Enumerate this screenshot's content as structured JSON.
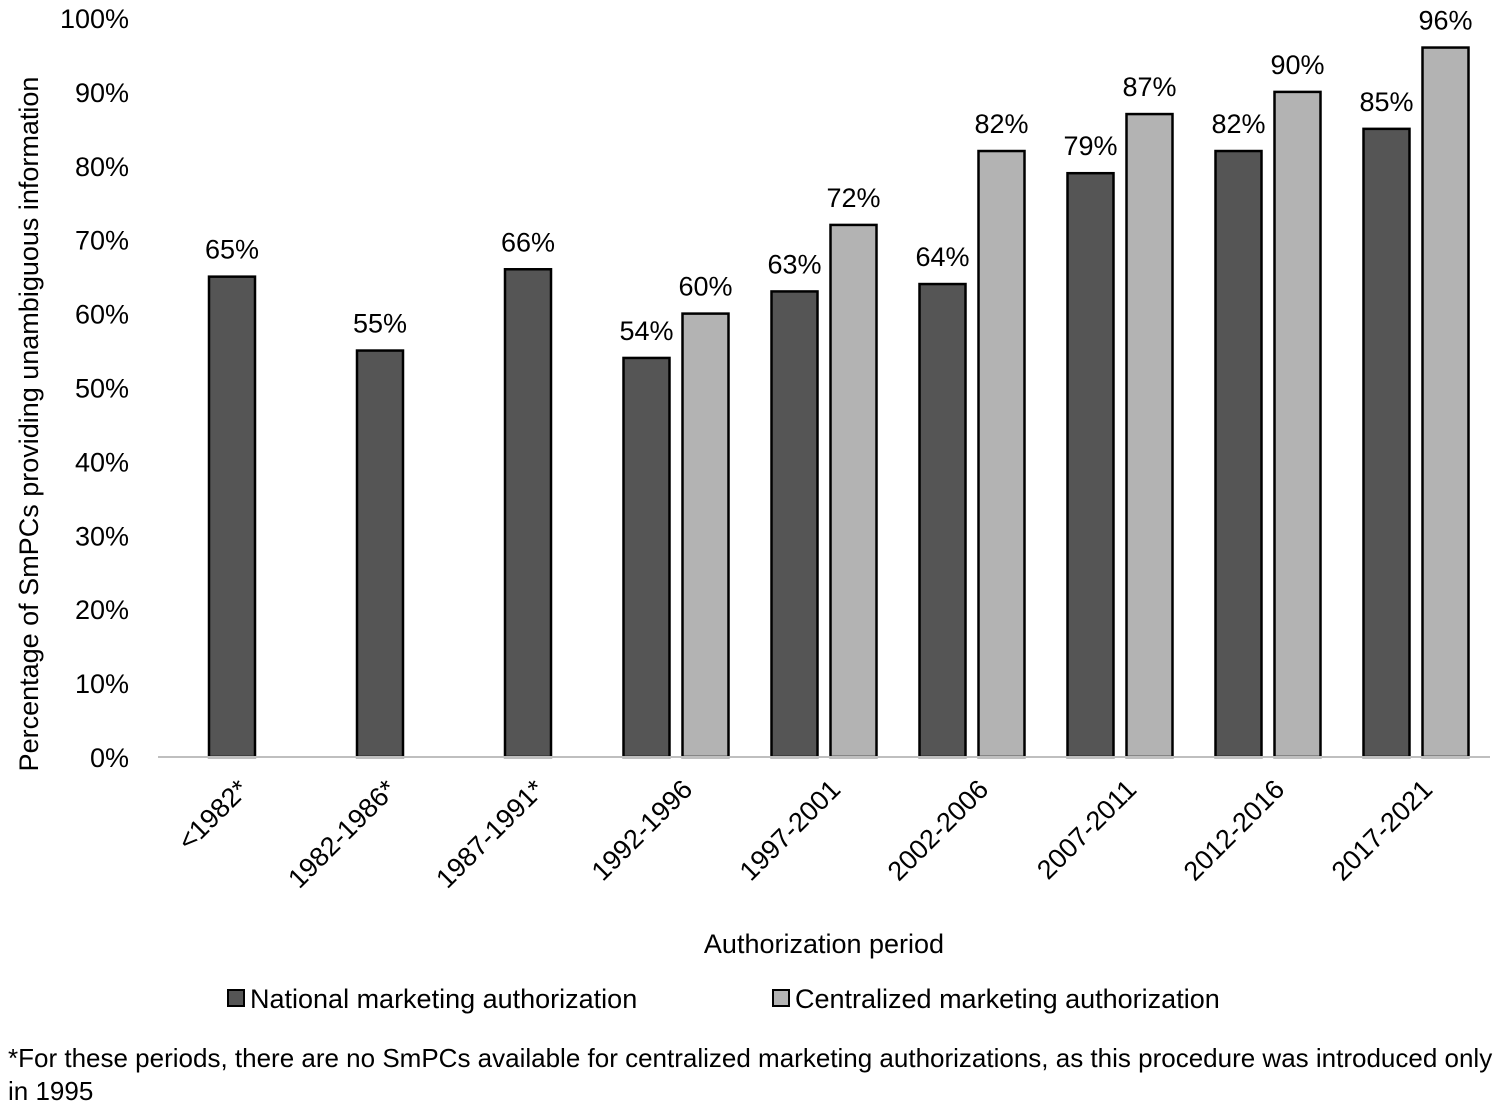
{
  "chart_data": {
    "type": "bar",
    "xlabel": "Authorization period",
    "ylabel": "Percentage of SmPCs providing unambiguous information",
    "ylim": [
      0,
      100
    ],
    "y_ticks": [
      "0%",
      "10%",
      "20%",
      "30%",
      "40%",
      "50%",
      "60%",
      "70%",
      "80%",
      "90%",
      "100%"
    ],
    "categories": [
      "<1982*",
      "1982-1986*",
      "1987-1991*",
      "1992-1996",
      "1997-2001",
      "2002-2006",
      "2007-2011",
      "2012-2016",
      "2017-2021"
    ],
    "series": [
      {
        "name": "National marketing authorization",
        "color": "#555555",
        "values": [
          65,
          55,
          66,
          54,
          63,
          64,
          79,
          82,
          85
        ],
        "labels": [
          "65%",
          "55%",
          "66%",
          "54%",
          "63%",
          "64%",
          "79%",
          "82%",
          "85%"
        ]
      },
      {
        "name": "Centralized marketing authorization",
        "color": "#b3b3b3",
        "values": [
          null,
          null,
          null,
          60,
          72,
          82,
          87,
          90,
          96
        ],
        "labels": [
          null,
          null,
          null,
          "60%",
          "72%",
          "82%",
          "87%",
          "90%",
          "96%"
        ]
      }
    ],
    "legend_position": "bottom",
    "grid": false
  },
  "footnote": "*For these periods, there are no SmPCs available for centralized marketing authorizations, as this procedure was introduced only in 1995"
}
